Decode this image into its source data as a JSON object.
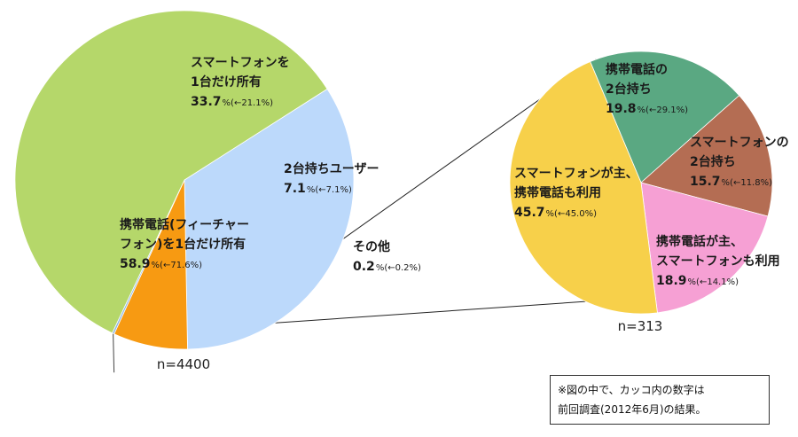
{
  "chart_data": [
    {
      "type": "pie",
      "n_label": "n=4400",
      "slices": [
        {
          "name_lines": [
            "スマートフォンを",
            "1台だけ所有"
          ],
          "value": 33.7,
          "value_text": "33.7",
          "prev_text": "%(←21.1%)",
          "color": "#bcd9fb"
        },
        {
          "name_lines": [
            "2台持ちユーザー"
          ],
          "value": 7.1,
          "value_text": "7.1",
          "prev_text": "%(←7.1%)",
          "color": "#f79a12"
        },
        {
          "name_lines": [
            "その他"
          ],
          "value": 0.2,
          "value_text": "0.2",
          "prev_text": "%(←0.2%)",
          "color": "#8fb7e3"
        },
        {
          "name_lines": [
            "携帯電話(フィーチャー",
            "フォン)を1台だけ所有"
          ],
          "value": 58.9,
          "value_text": "58.9",
          "prev_text": "%(←71.6%)",
          "color": "#b5d76a"
        }
      ]
    },
    {
      "type": "pie",
      "n_label": "n=313",
      "slices": [
        {
          "name_lines": [
            "携帯電話の",
            "2台持ち"
          ],
          "value": 19.8,
          "value_text": "19.8",
          "prev_text": "%(←29.1%)",
          "color": "#5aa882"
        },
        {
          "name_lines": [
            "スマートフォンの",
            "2台持ち"
          ],
          "value": 15.7,
          "value_text": "15.7",
          "prev_text": "%(←11.8%)",
          "color": "#b46d53"
        },
        {
          "name_lines": [
            "携帯電話が主、",
            "スマートフォンも利用"
          ],
          "value": 18.9,
          "value_text": "18.9",
          "prev_text": "%(←14.1%)",
          "color": "#f6a0d4"
        },
        {
          "name_lines": [
            "スマートフォンが主、",
            "携帯電話も利用"
          ],
          "value": 45.7,
          "value_text": "45.7",
          "prev_text": "%(←45.0%)",
          "color": "#f7d04a"
        }
      ]
    }
  ],
  "note": {
    "line1": "※図の中で、カッコ内の数字は",
    "line2": "前回調査(2012年6月)の結果。"
  }
}
